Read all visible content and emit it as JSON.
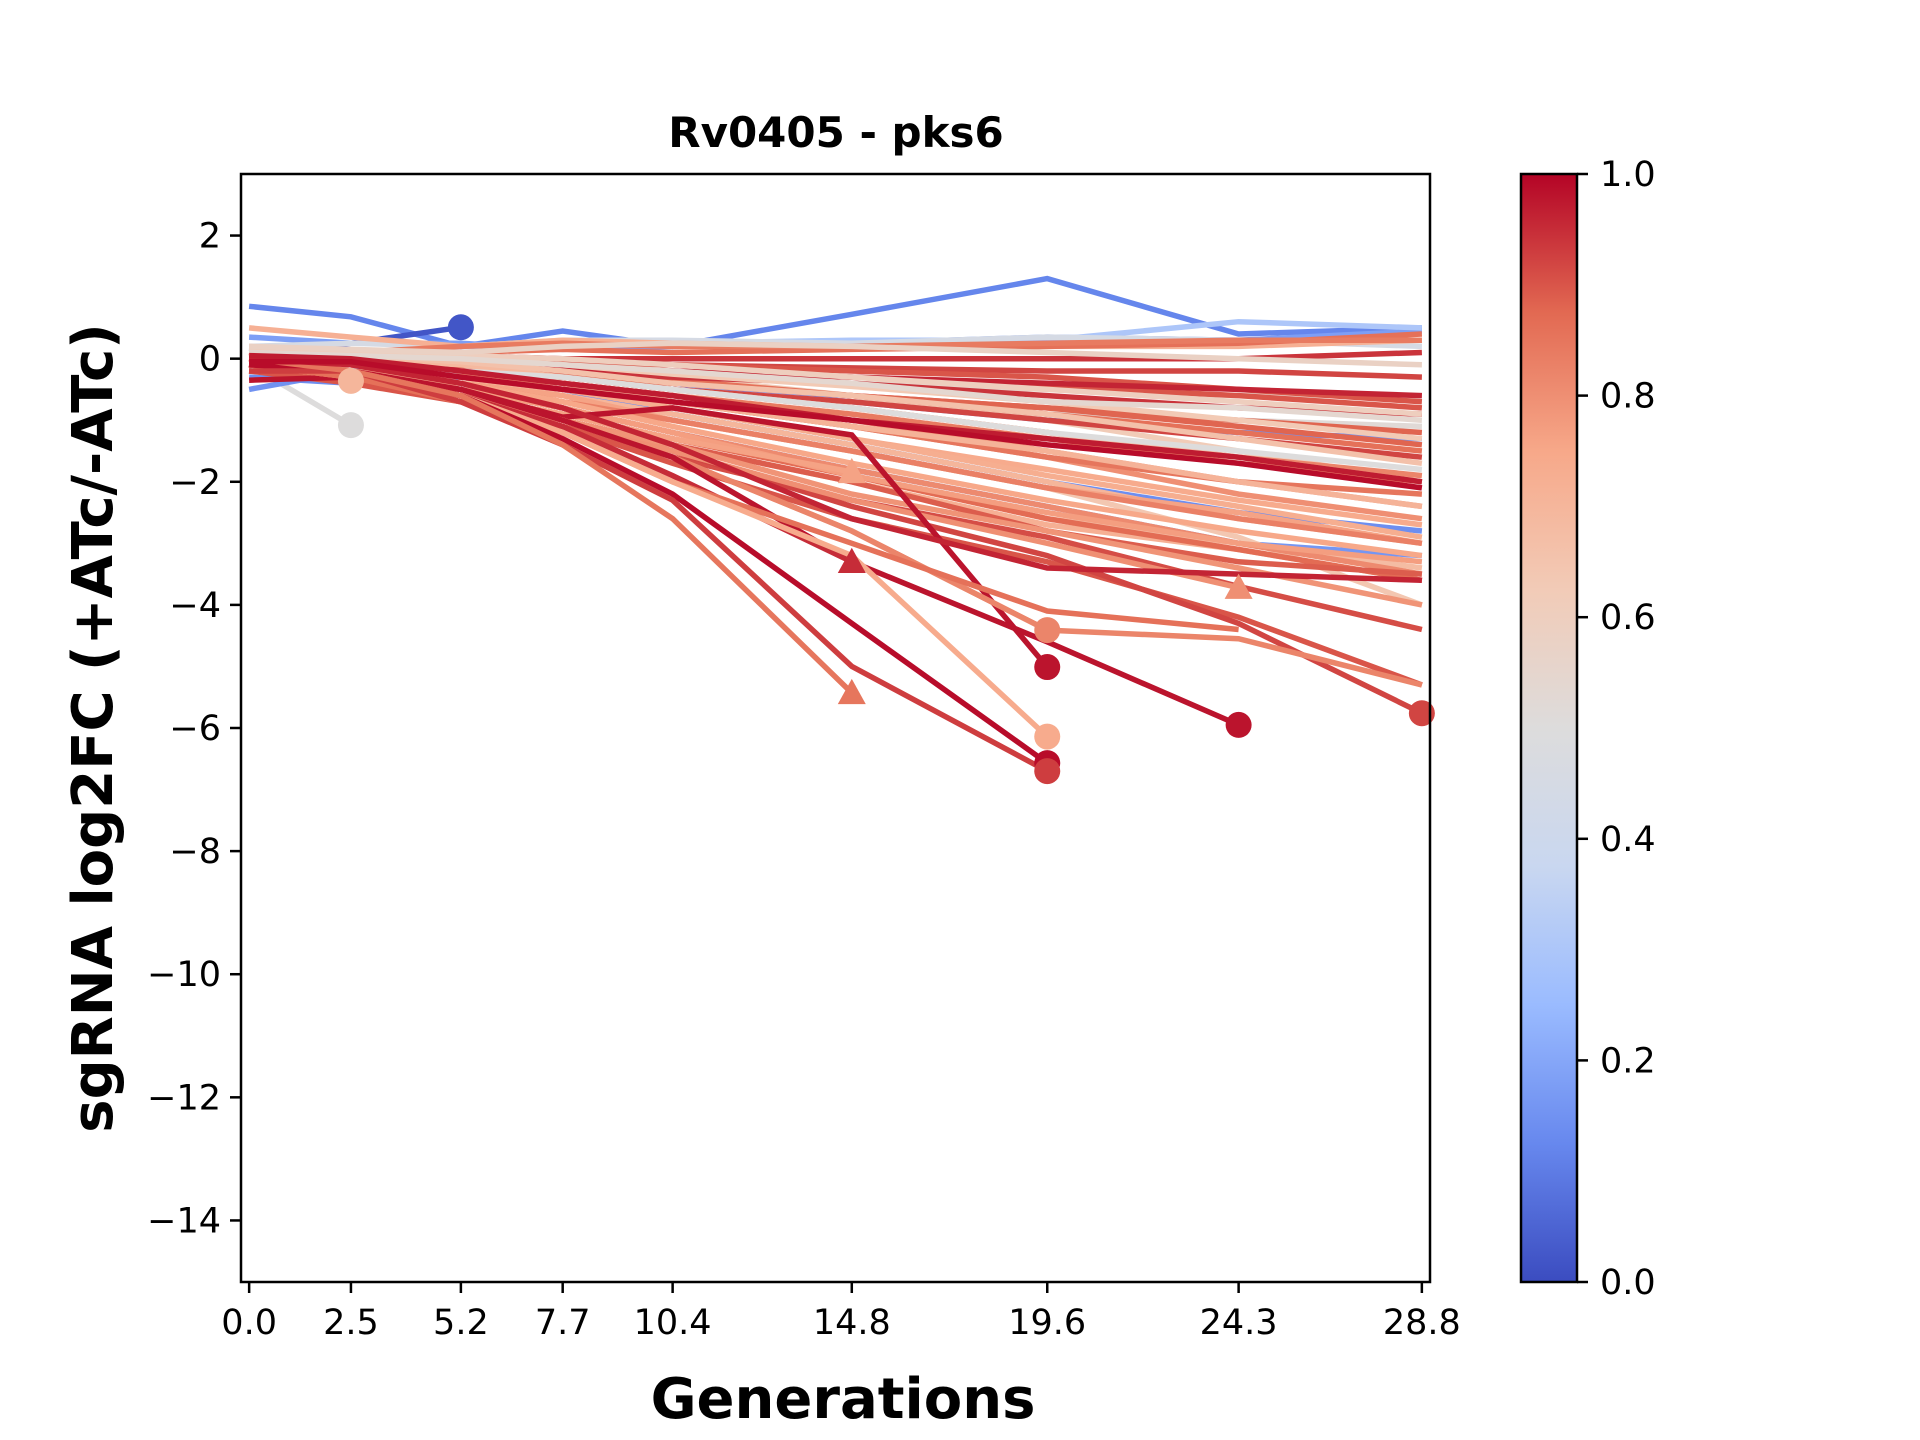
{
  "chart_data": {
    "type": "line",
    "title": "Rv0405 - pks6",
    "xlabel": "Generations",
    "ylabel": "sgRNA log2FC (+ATc/-ATc)",
    "x": [
      0.0,
      2.5,
      5.2,
      7.7,
      10.4,
      14.8,
      19.6,
      24.3,
      28.8
    ],
    "xticks": [
      "0.0",
      "2.5",
      "5.2",
      "7.7",
      "10.4",
      "14.8",
      "19.6",
      "24.3",
      "28.8"
    ],
    "xlim": [
      -0.2,
      29.0
    ],
    "ylim": [
      -15,
      3
    ],
    "yticks": [
      2,
      0,
      -2,
      -4,
      -6,
      -8,
      -10,
      -12,
      -14
    ],
    "ytick_labels": [
      "2",
      "0",
      "−2",
      "−4",
      "−6",
      "−8",
      "−10",
      "−12",
      "−14"
    ],
    "grid": false,
    "colormap": "coolwarm",
    "colorbar": {
      "range": [
        0.0,
        1.0
      ],
      "ticks": [
        "0.0",
        "0.2",
        "0.4",
        "0.6",
        "0.8",
        "1.0"
      ],
      "stops": [
        "#3b4cc0",
        "#6788ee",
        "#9abbff",
        "#c9d7f0",
        "#dddcdc",
        "#f2cbb7",
        "#f7a889",
        "#e26952",
        "#b40426"
      ]
    },
    "series": [
      {
        "c": 0.12,
        "y": [
          0.85,
          0.68,
          0.2,
          0.45,
          0.2,
          0.72,
          1.3,
          0.4,
          0.5
        ],
        "marker": null
      },
      {
        "c": 0.02,
        "y": [
          0.1,
          0.25,
          0.51
        ],
        "marker": "o"
      },
      {
        "c": 0.7,
        "y": [
          0.1,
          -0.36
        ],
        "marker": "o"
      },
      {
        "c": 0.5,
        "y": [
          -0.1,
          -1.08
        ],
        "marker": "o"
      },
      {
        "c": 0.18,
        "y": [
          0.35,
          0.25,
          0.25,
          0.15,
          0.2,
          0.25,
          0.35,
          0.3,
          0.45
        ],
        "marker": null
      },
      {
        "c": 0.3,
        "y": [
          0.2,
          0.1,
          0.2,
          0.2,
          0.25,
          0.3,
          0.3,
          0.6,
          0.5
        ],
        "marker": null
      },
      {
        "c": 0.15,
        "y": [
          -0.5,
          -0.2,
          -0.1,
          -0.2,
          -0.4,
          -0.7,
          -1.0,
          -1.2,
          -1.3
        ],
        "marker": null
      },
      {
        "c": 0.14,
        "y": [
          -0.3,
          -0.4,
          -0.3,
          -0.5,
          -0.9,
          -1.4,
          -2.0,
          -2.5,
          -2.8
        ],
        "marker": null
      },
      {
        "c": 0.16,
        "y": [
          -0.2,
          -0.3,
          -0.5,
          -0.8,
          -1.2,
          -1.8,
          -2.4,
          -3.0,
          -3.2
        ],
        "marker": null
      },
      {
        "c": 0.45,
        "y": [
          0.2,
          0.25,
          0.2,
          0.3,
          0.3,
          0.25,
          0.35,
          0.3,
          0.2
        ],
        "marker": null
      },
      {
        "c": 0.52,
        "y": [
          0.0,
          -0.1,
          -0.2,
          -0.3,
          -0.5,
          -0.7,
          -0.9,
          -1.0,
          -1.1
        ],
        "marker": null
      },
      {
        "c": 0.55,
        "y": [
          0.1,
          0.0,
          -0.1,
          -0.2,
          -0.3,
          -0.4,
          -0.5,
          -0.6,
          -0.6
        ],
        "marker": null
      },
      {
        "c": 0.72,
        "y": [
          0.5,
          0.35,
          0.2,
          0.3,
          0.25,
          0.2,
          0.2,
          0.2,
          0.3
        ],
        "marker": null
      },
      {
        "c": 0.62,
        "y": [
          0.2,
          0.1,
          0.0,
          -0.1,
          -0.3,
          -0.6,
          -1.0,
          -1.5,
          -2.0
        ],
        "marker": null
      },
      {
        "c": 0.64,
        "y": [
          0.0,
          -0.2,
          -0.4,
          -0.7,
          -1.0,
          -1.5,
          -2.1,
          -2.9,
          -4.0
        ],
        "marker": null
      },
      {
        "c": 0.68,
        "y": [
          -0.1,
          -0.2,
          -0.5,
          -0.8,
          -1.2,
          -1.9,
          -2.6,
          -3.0,
          -3.4
        ],
        "marker": null
      },
      {
        "c": 0.7,
        "y": [
          0.0,
          -0.1,
          -0.3,
          -0.6,
          -0.9,
          -1.4,
          -2.0,
          -2.6,
          -3.0
        ],
        "marker": null
      },
      {
        "c": 0.72,
        "y": [
          -0.1,
          -0.3,
          -0.6,
          -1.0,
          -1.4,
          -2.0,
          -2.7,
          -3.1,
          -3.6
        ],
        "marker": null
      },
      {
        "c": 0.74,
        "y": [
          0.1,
          -0.1,
          -0.3,
          -0.5,
          -0.8,
          -1.3,
          -1.8,
          -2.3,
          -2.7
        ],
        "marker": null
      },
      {
        "c": 0.76,
        "y": [
          0.0,
          -0.2,
          -0.4,
          -0.6,
          -1.0,
          -1.5,
          -2.1,
          -2.5,
          -3.0
        ],
        "marker": null
      },
      {
        "c": 0.78,
        "y": [
          0.1,
          0.0,
          -0.2,
          -0.4,
          -0.6,
          -1.0,
          -1.5,
          -2.0,
          -2.4
        ],
        "marker": null
      },
      {
        "c": 0.8,
        "y": [
          0.0,
          -0.1,
          -0.3,
          -0.5,
          -0.7,
          -1.1,
          -1.6,
          -2.2,
          -2.6
        ],
        "marker": null
      },
      {
        "c": 0.82,
        "y": [
          0.05,
          -0.05,
          -0.2,
          -0.3,
          -0.5,
          -0.8,
          -1.2,
          -1.6,
          -1.9
        ],
        "marker": null
      },
      {
        "c": 0.84,
        "y": [
          0.0,
          -0.1,
          -0.25,
          -0.4,
          -0.6,
          -0.9,
          -1.3,
          -1.7,
          -2.0
        ],
        "marker": null
      },
      {
        "c": 0.86,
        "y": [
          0.1,
          0.0,
          -0.1,
          -0.2,
          -0.35,
          -0.6,
          -0.9,
          -1.2,
          -1.5
        ],
        "marker": null
      },
      {
        "c": 0.88,
        "y": [
          0.0,
          -0.05,
          -0.15,
          -0.25,
          -0.4,
          -0.6,
          -0.8,
          -1.0,
          -1.2
        ],
        "marker": null
      },
      {
        "c": 0.9,
        "y": [
          0.05,
          0.0,
          -0.05,
          -0.1,
          -0.2,
          -0.3,
          -0.45,
          -0.6,
          -0.8
        ],
        "marker": null
      },
      {
        "c": 0.92,
        "y": [
          0.0,
          0.0,
          0.0,
          -0.05,
          -0.1,
          -0.15,
          -0.2,
          -0.2,
          -0.3
        ],
        "marker": null
      },
      {
        "c": 0.94,
        "y": [
          0.0,
          0.0,
          0.05,
          0.0,
          0.0,
          0.0,
          0.0,
          0.0,
          0.1
        ],
        "marker": null
      },
      {
        "c": 0.86,
        "y": [
          0.1,
          0.1,
          0.1,
          0.15,
          0.1,
          0.15,
          0.2,
          0.25,
          0.4
        ],
        "marker": null
      },
      {
        "c": 0.84,
        "y": [
          0.0,
          0.1,
          0.2,
          0.25,
          0.2,
          0.2,
          0.25,
          0.3,
          0.3
        ],
        "marker": null
      },
      {
        "c": 0.9,
        "y": [
          -0.1,
          -0.05,
          0.0,
          -0.05,
          -0.1,
          -0.2,
          -0.3,
          -0.5,
          -0.7
        ],
        "marker": null
      },
      {
        "c": 0.88,
        "y": [
          0.0,
          -0.1,
          -0.2,
          -0.3,
          -0.4,
          -0.6,
          -0.8,
          -1.1,
          -1.4
        ],
        "marker": null
      },
      {
        "c": 0.92,
        "y": [
          -0.1,
          -0.1,
          -0.2,
          -0.3,
          -0.5,
          -0.7,
          -1.0,
          -1.3,
          -1.6
        ],
        "marker": null
      },
      {
        "c": 0.94,
        "y": [
          0.0,
          -0.05,
          -0.1,
          -0.2,
          -0.3,
          -0.4,
          -0.6,
          -0.8,
          -0.9
        ],
        "marker": null
      },
      {
        "c": 0.96,
        "y": [
          -0.05,
          -0.05,
          -0.1,
          -0.15,
          -0.2,
          -0.3,
          -0.4,
          -0.5,
          -0.6
        ],
        "marker": null
      },
      {
        "c": 0.85,
        "y": [
          0.0,
          -0.1,
          -0.3,
          -0.5,
          -0.7,
          -1.1,
          -1.6,
          -2.0,
          -2.2
        ],
        "marker": null
      },
      {
        "c": 0.83,
        "y": [
          -0.1,
          -0.2,
          -0.4,
          -0.7,
          -1.0,
          -1.5,
          -2.1,
          -2.6,
          -3.0
        ],
        "marker": null
      },
      {
        "c": 0.81,
        "y": [
          -0.1,
          -0.2,
          -0.5,
          -0.8,
          -1.2,
          -1.8,
          -2.4,
          -3.0,
          -3.5
        ],
        "marker": null
      },
      {
        "c": 0.87,
        "y": [
          -0.1,
          -0.3,
          -0.6,
          -0.9,
          -1.3,
          -1.9,
          -2.6,
          -3.1,
          -3.6
        ],
        "marker": null
      },
      {
        "c": 0.89,
        "y": [
          -0.2,
          -0.3,
          -0.6,
          -1.0,
          -1.4,
          -2.0,
          -2.8,
          -3.3,
          -3.5
        ],
        "marker": null
      },
      {
        "c": 0.91,
        "y": [
          -0.1,
          -0.3,
          -0.7,
          -1.1,
          -1.6,
          -2.3,
          -2.9,
          -3.7,
          -4.4
        ],
        "marker": null
      },
      {
        "c": 0.9,
        "y": [
          -0.2,
          -0.4,
          -0.7,
          -1.1,
          -1.7,
          -2.6,
          -3.3,
          -4.2,
          -5.3
        ],
        "marker": null
      },
      {
        "c": 0.92,
        "y": [
          -0.1,
          -0.3,
          -0.6,
          -1.0,
          -1.5,
          -2.4,
          -3.2,
          -4.3,
          -5.76
        ],
        "marker": "o"
      },
      {
        "c": 0.8,
        "y": [
          -0.1,
          -0.3,
          -0.6,
          -1.0,
          -1.5,
          -2.3,
          -3.0,
          -3.72
        ],
        "marker": "^"
      },
      {
        "c": 0.79,
        "y": [
          -0.1,
          -0.3,
          -0.6,
          -1.0,
          -1.4,
          -2.2,
          -2.8,
          -3.4,
          -4.0
        ],
        "marker": null
      },
      {
        "c": 0.77,
        "y": [
          0.0,
          -0.2,
          -0.5,
          -0.8,
          -1.2,
          -1.9,
          -2.5,
          -3.0,
          -3.3
        ],
        "marker": null
      },
      {
        "c": 0.75,
        "y": [
          0.0,
          -0.2,
          -0.4,
          -0.7,
          -1.1,
          -1.7,
          -2.3,
          -2.8,
          -3.2
        ],
        "marker": null
      },
      {
        "c": 0.73,
        "y": [
          0.0,
          -0.1,
          -0.3,
          -0.5,
          -0.8,
          -1.3,
          -1.9,
          -2.4,
          -2.9
        ],
        "marker": null
      },
      {
        "c": 0.71,
        "y": [
          0.0,
          -0.1,
          -0.2,
          -0.4,
          -0.7,
          -1.1,
          -1.5,
          -2.0,
          -2.4
        ],
        "marker": null
      },
      {
        "c": 0.69,
        "y": [
          0.1,
          0.0,
          -0.1,
          -0.3,
          -0.5,
          -0.8,
          -1.2,
          -1.6,
          -2.0
        ],
        "marker": null
      },
      {
        "c": 0.66,
        "y": [
          0.1,
          0.05,
          -0.05,
          -0.2,
          -0.4,
          -0.6,
          -0.9,
          -1.3,
          -1.7
        ],
        "marker": null
      },
      {
        "c": 0.63,
        "y": [
          0.1,
          0.1,
          0.0,
          -0.1,
          -0.25,
          -0.45,
          -0.7,
          -1.0,
          -1.3
        ],
        "marker": null
      },
      {
        "c": 0.6,
        "y": [
          0.15,
          0.1,
          0.05,
          0.0,
          -0.1,
          -0.3,
          -0.5,
          -0.7,
          -0.9
        ],
        "marker": null
      },
      {
        "c": 0.58,
        "y": [
          0.2,
          0.15,
          0.1,
          0.2,
          0.25,
          0.2,
          0.1,
          0.0,
          -0.1
        ],
        "marker": null
      },
      {
        "c": 0.54,
        "y": [
          0.1,
          0.05,
          0.0,
          -0.1,
          -0.2,
          -0.4,
          -0.7,
          -0.8,
          -1.0
        ],
        "marker": null
      },
      {
        "c": 0.5,
        "y": [
          0.0,
          -0.1,
          -0.2,
          -0.3,
          -0.5,
          -0.8,
          -1.2,
          -1.5,
          -1.8
        ],
        "marker": null
      },
      {
        "c": 0.76,
        "y": [
          -0.1,
          -0.3,
          -0.6,
          -0.9,
          -1.3,
          -1.84
        ],
        "marker": "^"
      },
      {
        "c": 0.98,
        "y": [
          -0.35,
          -0.3,
          -0.5,
          -0.95,
          -0.8,
          -1.24,
          -5.01
        ],
        "marker": "o"
      },
      {
        "c": 0.82,
        "y": [
          -0.1,
          -0.3,
          -0.6,
          -1.0,
          -1.6,
          -2.8,
          -4.41,
          -4.55,
          -5.3
        ],
        "marker": null
      },
      {
        "c": 0.82,
        "y": [
          -0.1,
          -0.3,
          -0.6,
          -1.0,
          -1.6,
          -2.8,
          -4.41
        ],
        "marker": "o"
      },
      {
        "c": 0.98,
        "y": [
          -0.1,
          -0.2,
          -0.5,
          -1.0,
          -1.6,
          -3.3,
          -4.6,
          -5.95
        ],
        "marker": "o"
      },
      {
        "c": 0.95,
        "y": [
          -0.1,
          -0.2,
          -0.6,
          -1.1,
          -1.9,
          -3.3
        ],
        "marker": "^"
      },
      {
        "c": 0.86,
        "y": [
          -0.1,
          -0.3,
          -0.7,
          -1.2,
          -2.0,
          -3.0,
          -4.1,
          -4.4
        ],
        "marker": null
      },
      {
        "c": 0.74,
        "y": [
          0.0,
          -0.2,
          -0.6,
          -1.2,
          -2.0,
          -3.2,
          -6.14
        ],
        "marker": "o"
      },
      {
        "c": 0.99,
        "y": [
          -0.1,
          -0.2,
          -0.6,
          -1.3,
          -2.2,
          -4.3,
          -6.57
        ],
        "marker": "o"
      },
      {
        "c": 0.93,
        "y": [
          -0.2,
          -0.2,
          -0.7,
          -1.4,
          -2.3,
          -5.0,
          -6.7
        ],
        "marker": "o"
      },
      {
        "c": 0.85,
        "y": [
          0.0,
          -0.2,
          -0.6,
          -1.4,
          -2.6,
          -5.43
        ],
        "marker": "^"
      },
      {
        "c": 0.96,
        "y": [
          0.0,
          -0.1,
          -0.4,
          -0.8,
          -1.4,
          -2.6,
          -3.4,
          -3.5,
          -3.6
        ],
        "marker": null
      },
      {
        "c": 0.97,
        "y": [
          0.05,
          0.0,
          -0.2,
          -0.4,
          -0.6,
          -1.0,
          -1.3,
          -1.6,
          -2.0
        ],
        "marker": null
      },
      {
        "c": 0.99,
        "y": [
          -0.05,
          -0.05,
          -0.3,
          -0.5,
          -0.7,
          -1.0,
          -1.4,
          -1.7,
          -2.1
        ],
        "marker": null
      }
    ]
  }
}
